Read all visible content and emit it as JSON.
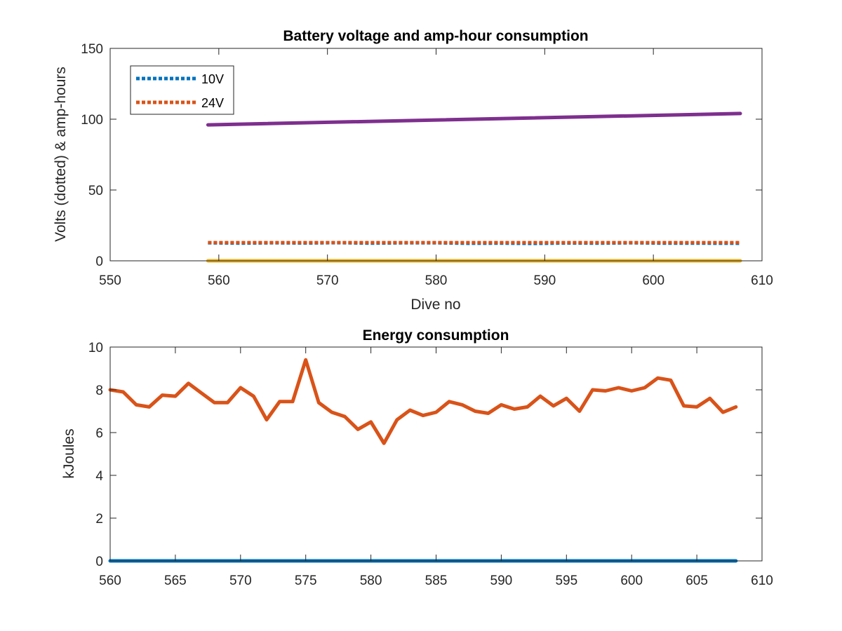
{
  "chart_data": [
    {
      "type": "line",
      "title": "Battery voltage and amp-hour consumption",
      "xlabel": "Dive no",
      "ylabel": "Volts (dotted) & amp-hours",
      "xlim": [
        550,
        610
      ],
      "ylim": [
        0,
        150
      ],
      "xticks": [
        "550",
        "560",
        "570",
        "580",
        "590",
        "600",
        "610"
      ],
      "yticks": [
        "0",
        "50",
        "100",
        "150"
      ],
      "legend_position": "top-left",
      "grid": false,
      "series": [
        {
          "name": "10V",
          "color": "#0072BD",
          "style": "dotted",
          "legend": true,
          "x": [
            559,
            562,
            565,
            568,
            571,
            574,
            577,
            580,
            583,
            586,
            589,
            592,
            595,
            598,
            601,
            604,
            608
          ],
          "y": [
            12.6,
            12.4,
            12.6,
            12.5,
            12.7,
            12.4,
            12.6,
            12.6,
            12.3,
            12.4,
            12.2,
            12.5,
            12.4,
            12.6,
            12.4,
            12.4,
            12.3
          ]
        },
        {
          "name": "24V",
          "color": "#D95319",
          "style": "dotted",
          "legend": true,
          "x": [
            559,
            608
          ],
          "y": [
            12.9,
            12.9
          ]
        },
        {
          "name": "",
          "color": "#EDB120",
          "style": "solid",
          "legend": false,
          "x": [
            559,
            608
          ],
          "y": [
            0,
            0
          ]
        },
        {
          "name": "",
          "color": "#7E2F8E",
          "style": "solid",
          "legend": false,
          "x": [
            559,
            608
          ],
          "y": [
            96,
            104
          ]
        }
      ]
    },
    {
      "type": "line",
      "title": "Energy consumption",
      "xlabel": "",
      "ylabel": "kJoules",
      "xlim": [
        560,
        610
      ],
      "ylim": [
        0,
        10
      ],
      "xticks": [
        "560",
        "565",
        "570",
        "575",
        "580",
        "585",
        "590",
        "595",
        "600",
        "605",
        "610"
      ],
      "yticks": [
        "0",
        "2",
        "4",
        "6",
        "8",
        "10"
      ],
      "grid": false,
      "series": [
        {
          "name": "",
          "color": "#0072BD",
          "style": "solid",
          "x": [
            560,
            608
          ],
          "y": [
            0,
            0
          ]
        },
        {
          "name": "",
          "color": "#D95319",
          "style": "solid",
          "x": [
            560,
            561,
            562,
            563,
            564,
            565,
            566,
            567,
            568,
            569,
            570,
            571,
            572,
            573,
            574,
            575,
            576,
            577,
            578,
            579,
            580,
            581,
            582,
            583,
            584,
            585,
            586,
            587,
            588,
            589,
            590,
            591,
            592,
            593,
            594,
            595,
            596,
            597,
            598,
            599,
            600,
            601,
            602,
            603,
            604,
            605,
            606,
            607,
            608
          ],
          "y": [
            8.0,
            7.9,
            7.3,
            7.2,
            7.75,
            7.7,
            8.3,
            7.85,
            7.4,
            7.4,
            8.1,
            7.7,
            6.6,
            7.45,
            7.45,
            9.4,
            7.4,
            6.95,
            6.75,
            6.15,
            6.5,
            5.5,
            6.6,
            7.05,
            6.8,
            6.95,
            7.45,
            7.3,
            7.0,
            6.9,
            7.3,
            7.1,
            7.2,
            7.7,
            7.25,
            7.6,
            7.0,
            8.0,
            7.95,
            8.1,
            7.95,
            8.1,
            8.55,
            8.45,
            7.25,
            7.2,
            7.6,
            6.95,
            7.2
          ]
        }
      ]
    }
  ]
}
